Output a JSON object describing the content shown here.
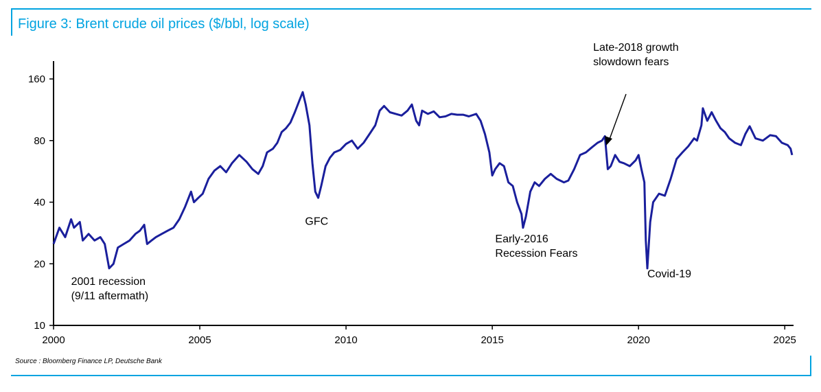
{
  "title": "Figure 3: Brent crude oil prices ($/bbl, log scale)",
  "source": "Source : Bloomberg Finance LP, Deutsche Bank",
  "colors": {
    "accent": "#00a3e0",
    "series": "#1a1f9c"
  },
  "chart_data": {
    "type": "line",
    "title": "Figure 3: Brent crude oil prices ($/bbl, log scale)",
    "yscale": "log",
    "ylim": [
      10,
      160
    ],
    "xlim": [
      2000,
      2025.3
    ],
    "x_ticks": [
      "2000",
      "2005",
      "2010",
      "2015",
      "2020",
      "2025"
    ],
    "y_ticks": [
      "10",
      "20",
      "40",
      "80",
      "160"
    ],
    "grid": false,
    "legend": "none",
    "series": [
      {
        "x": [
          2000.0,
          2000.2,
          2000.4,
          2000.6,
          2000.7,
          2000.9,
          2001.0,
          2001.2,
          2001.4,
          2001.6,
          2001.75,
          2001.9,
          2002.05,
          2002.2,
          2002.4,
          2002.6,
          2002.8,
          2002.95,
          2003.1,
          2003.2,
          2003.35,
          2003.5,
          2003.7,
          2003.9,
          2004.1,
          2004.3,
          2004.5,
          2004.7,
          2004.8,
          2004.95,
          2005.1,
          2005.3,
          2005.5,
          2005.7,
          2005.9,
          2006.1,
          2006.35,
          2006.6,
          2006.8,
          2007.0,
          2007.15,
          2007.3,
          2007.5,
          2007.65,
          2007.8,
          2007.95,
          2008.1,
          2008.25,
          2008.4,
          2008.52,
          2008.62,
          2008.75,
          2008.85,
          2008.95,
          2009.05,
          2009.15,
          2009.3,
          2009.45,
          2009.6,
          2009.8,
          2010.0,
          2010.2,
          2010.4,
          2010.6,
          2010.8,
          2011.0,
          2011.15,
          2011.3,
          2011.5,
          2011.7,
          2011.9,
          2012.1,
          2012.25,
          2012.4,
          2012.5,
          2012.6,
          2012.8,
          2013.0,
          2013.2,
          2013.4,
          2013.6,
          2013.8,
          2014.0,
          2014.2,
          2014.45,
          2014.6,
          2014.75,
          2014.9,
          2015.0,
          2015.1,
          2015.25,
          2015.4,
          2015.55,
          2015.7,
          2015.85,
          2016.0,
          2016.05,
          2016.15,
          2016.3,
          2016.45,
          2016.6,
          2016.8,
          2017.0,
          2017.2,
          2017.45,
          2017.6,
          2017.8,
          2018.0,
          2018.2,
          2018.4,
          2018.6,
          2018.75,
          2018.85,
          2018.95,
          2019.05,
          2019.2,
          2019.35,
          2019.5,
          2019.7,
          2019.9,
          2020.0,
          2020.1,
          2020.2,
          2020.25,
          2020.3,
          2020.4,
          2020.5,
          2020.7,
          2020.9,
          2021.1,
          2021.3,
          2021.5,
          2021.7,
          2021.9,
          2022.0,
          2022.15,
          2022.2,
          2022.35,
          2022.5,
          2022.65,
          2022.8,
          2022.95,
          2023.1,
          2023.3,
          2023.5,
          2023.65,
          2023.8,
          2024.0,
          2024.25,
          2024.5,
          2024.7,
          2024.9,
          2025.1,
          2025.2,
          2025.25
        ],
        "y": [
          25,
          30,
          27,
          33,
          30,
          32,
          26,
          28,
          26,
          27,
          25,
          19,
          20,
          24,
          25,
          26,
          28,
          29,
          31,
          25,
          26,
          27,
          28,
          29,
          30,
          33,
          38,
          45,
          40,
          42,
          44,
          52,
          57,
          60,
          56,
          62,
          68,
          63,
          58,
          55,
          60,
          70,
          73,
          78,
          88,
          92,
          98,
          110,
          125,
          138,
          120,
          95,
          62,
          45,
          42,
          48,
          60,
          66,
          70,
          72,
          77,
          80,
          73,
          78,
          86,
          95,
          112,
          118,
          110,
          108,
          106,
          112,
          120,
          100,
          95,
          112,
          108,
          111,
          104,
          105,
          108,
          107,
          107,
          105,
          108,
          100,
          86,
          70,
          54,
          58,
          62,
          60,
          50,
          48,
          40,
          35,
          30,
          34,
          45,
          50,
          48,
          52,
          55,
          52,
          50,
          51,
          58,
          68,
          70,
          74,
          78,
          80,
          84,
          58,
          60,
          68,
          63,
          62,
          60,
          64,
          68,
          58,
          50,
          26,
          19,
          32,
          40,
          44,
          43,
          52,
          65,
          70,
          75,
          82,
          80,
          95,
          115,
          100,
          110,
          100,
          92,
          88,
          82,
          78,
          76,
          86,
          94,
          82,
          80,
          85,
          84,
          78,
          76,
          73,
          68
        ]
      }
    ],
    "annotations": [
      {
        "lines": [
          "2001 recession",
          "(9/11 aftermath)"
        ],
        "x": 2000.6,
        "y": 15.8
      },
      {
        "lines": [
          "GFC"
        ],
        "x": 2008.6,
        "y": 31
      },
      {
        "lines": [
          "Early-2016",
          "Recession Fears"
        ],
        "x": 2015.1,
        "y": 25.5
      },
      {
        "lines": [
          "Late-2018 growth",
          "slowdown fears"
        ],
        "x": 2018.45,
        "y": 220
      },
      {
        "lines": [
          "Covid-19"
        ],
        "x": 2020.3,
        "y": 17.2
      }
    ]
  }
}
